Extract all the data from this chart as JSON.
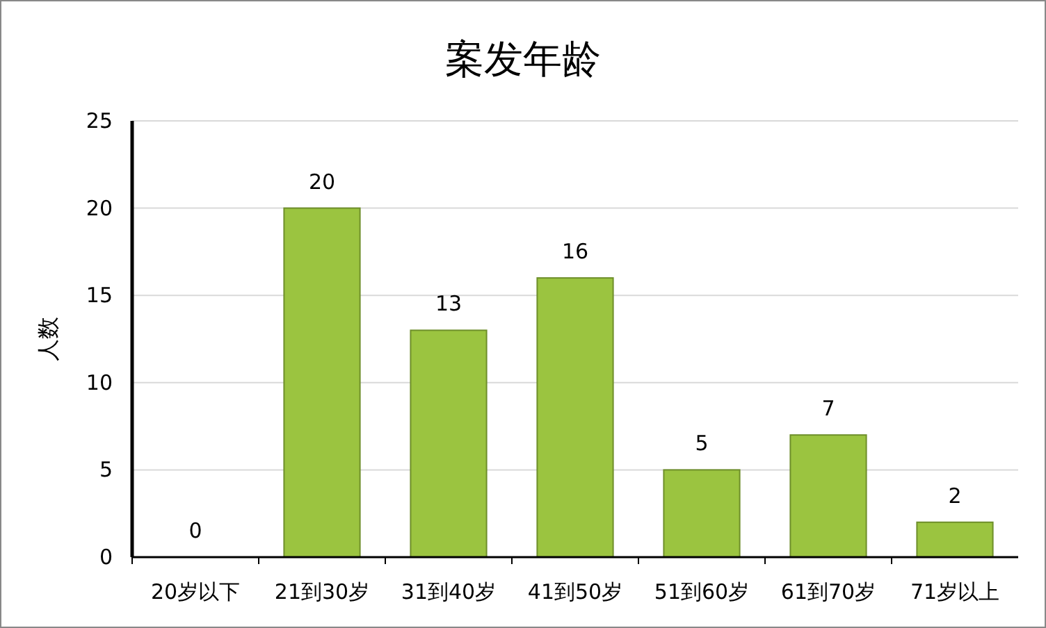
{
  "chart_data": {
    "type": "bar",
    "title": "案发年龄",
    "ylabel": "人数",
    "categories": [
      "20岁以下",
      "21到30岁",
      "31到40岁",
      "41到50岁",
      "51到60岁",
      "61到70岁",
      "71岁以上"
    ],
    "values": [
      0,
      20,
      13,
      16,
      5,
      7,
      2
    ],
    "color": "#9bc440",
    "ylim": [
      0,
      25
    ],
    "yticks": [
      0,
      5,
      10,
      15,
      20,
      25
    ],
    "grid": "y",
    "data_labels": true
  }
}
